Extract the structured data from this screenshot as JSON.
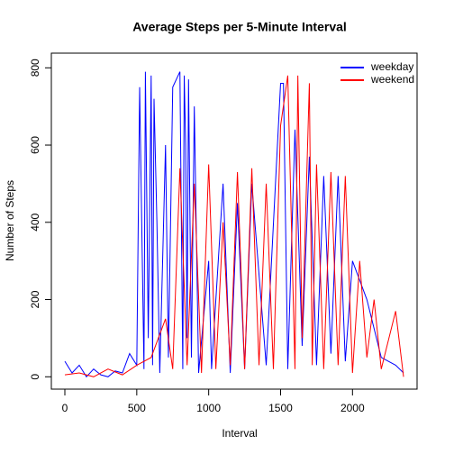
{
  "chart_data": {
    "type": "line",
    "title": "Average Steps per 5-Minute Interval",
    "x_label": "Interval",
    "y_label": "Number of Steps",
    "xlim": [
      -94,
      2449
    ],
    "ylim": [
      -32,
      838
    ],
    "xticks": [
      0,
      500,
      1000,
      1500,
      2000
    ],
    "yticks": [
      0,
      200,
      400,
      600,
      800
    ],
    "legend": "topright",
    "series": [
      {
        "name": "weekday",
        "color": "#0000ff",
        "x": [
          0,
          50,
          100,
          150,
          200,
          250,
          300,
          350,
          400,
          450,
          500,
          520,
          550,
          560,
          580,
          600,
          610,
          620,
          640,
          660,
          700,
          720,
          750,
          800,
          820,
          830,
          840,
          850,
          860,
          880,
          900,
          930,
          1000,
          1020,
          1100,
          1150,
          1200,
          1250,
          1300,
          1400,
          1500,
          1520,
          1550,
          1600,
          1650,
          1700,
          1750,
          1800,
          1850,
          1900,
          1950,
          2000,
          2100,
          2200,
          2300,
          2355
        ],
        "values": [
          40,
          10,
          30,
          0,
          20,
          5,
          0,
          15,
          10,
          60,
          30,
          750,
          20,
          790,
          100,
          780,
          30,
          720,
          400,
          10,
          600,
          50,
          750,
          790,
          20,
          780,
          600,
          100,
          770,
          50,
          700,
          10,
          300,
          20,
          500,
          10,
          450,
          20,
          500,
          30,
          760,
          760,
          20,
          640,
          80,
          570,
          30,
          520,
          60,
          520,
          40,
          300,
          200,
          50,
          30,
          10
        ]
      },
      {
        "name": "weekend",
        "color": "#ff0000",
        "x": [
          0,
          100,
          200,
          300,
          400,
          500,
          600,
          700,
          750,
          800,
          850,
          900,
          950,
          1000,
          1050,
          1100,
          1150,
          1200,
          1250,
          1300,
          1350,
          1400,
          1450,
          1500,
          1550,
          1600,
          1620,
          1650,
          1700,
          1720,
          1750,
          1800,
          1850,
          1900,
          1950,
          2000,
          2050,
          2100,
          2150,
          2200,
          2300,
          2355
        ],
        "values": [
          5,
          10,
          0,
          20,
          5,
          30,
          50,
          150,
          20,
          540,
          30,
          500,
          10,
          550,
          20,
          400,
          30,
          530,
          20,
          540,
          30,
          500,
          20,
          650,
          780,
          20,
          780,
          100,
          760,
          30,
          550,
          20,
          530,
          30,
          520,
          10,
          300,
          50,
          200,
          20,
          170,
          0
        ]
      }
    ]
  }
}
